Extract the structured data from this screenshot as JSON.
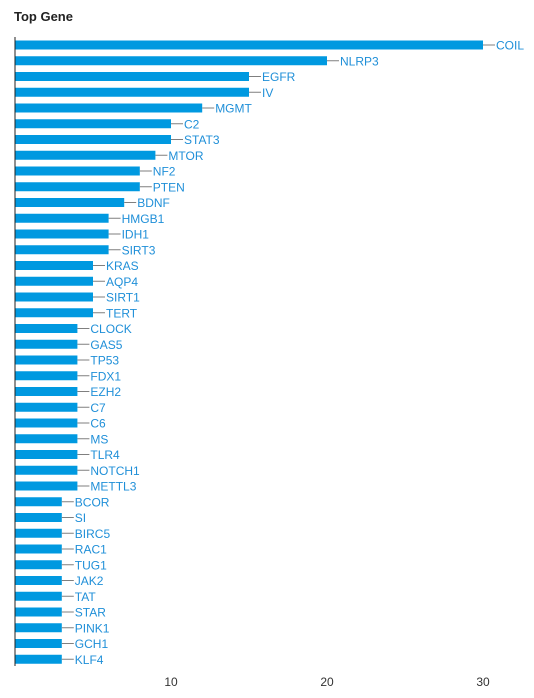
{
  "chart_data": {
    "type": "bar",
    "orientation": "horizontal",
    "title": "Top Gene",
    "xlabel": "",
    "ylabel": "",
    "xlim": [
      0,
      32
    ],
    "xticks": [
      10,
      20,
      30
    ],
    "grid": false,
    "legend": "none",
    "bar_color": "#0099e0",
    "label_color": "#1f8fd8",
    "categories": [
      "COIL",
      "NLRP3",
      "EGFR",
      "IV",
      "MGMT",
      "C2",
      "STAT3",
      "MTOR",
      "NF2",
      "PTEN",
      "BDNF",
      "HMGB1",
      "IDH1",
      "SIRT3",
      "KRAS",
      "AQP4",
      "SIRT1",
      "TERT",
      "CLOCK",
      "GAS5",
      "TP53",
      "FDX1",
      "EZH2",
      "C7",
      "C6",
      "MS",
      "TLR4",
      "NOTCH1",
      "METTL3",
      "BCOR",
      "SI",
      "BIRC5",
      "RAC1",
      "TUG1",
      "JAK2",
      "TAT",
      "STAR",
      "PINK1",
      "GCH1",
      "KLF4"
    ],
    "values": [
      30,
      20,
      15,
      15,
      12,
      10,
      10,
      9,
      8,
      8,
      7,
      6,
      6,
      6,
      5,
      5,
      5,
      5,
      4,
      4,
      4,
      4,
      4,
      4,
      4,
      4,
      4,
      4,
      4,
      3,
      3,
      3,
      3,
      3,
      3,
      3,
      3,
      3,
      3,
      3
    ]
  }
}
